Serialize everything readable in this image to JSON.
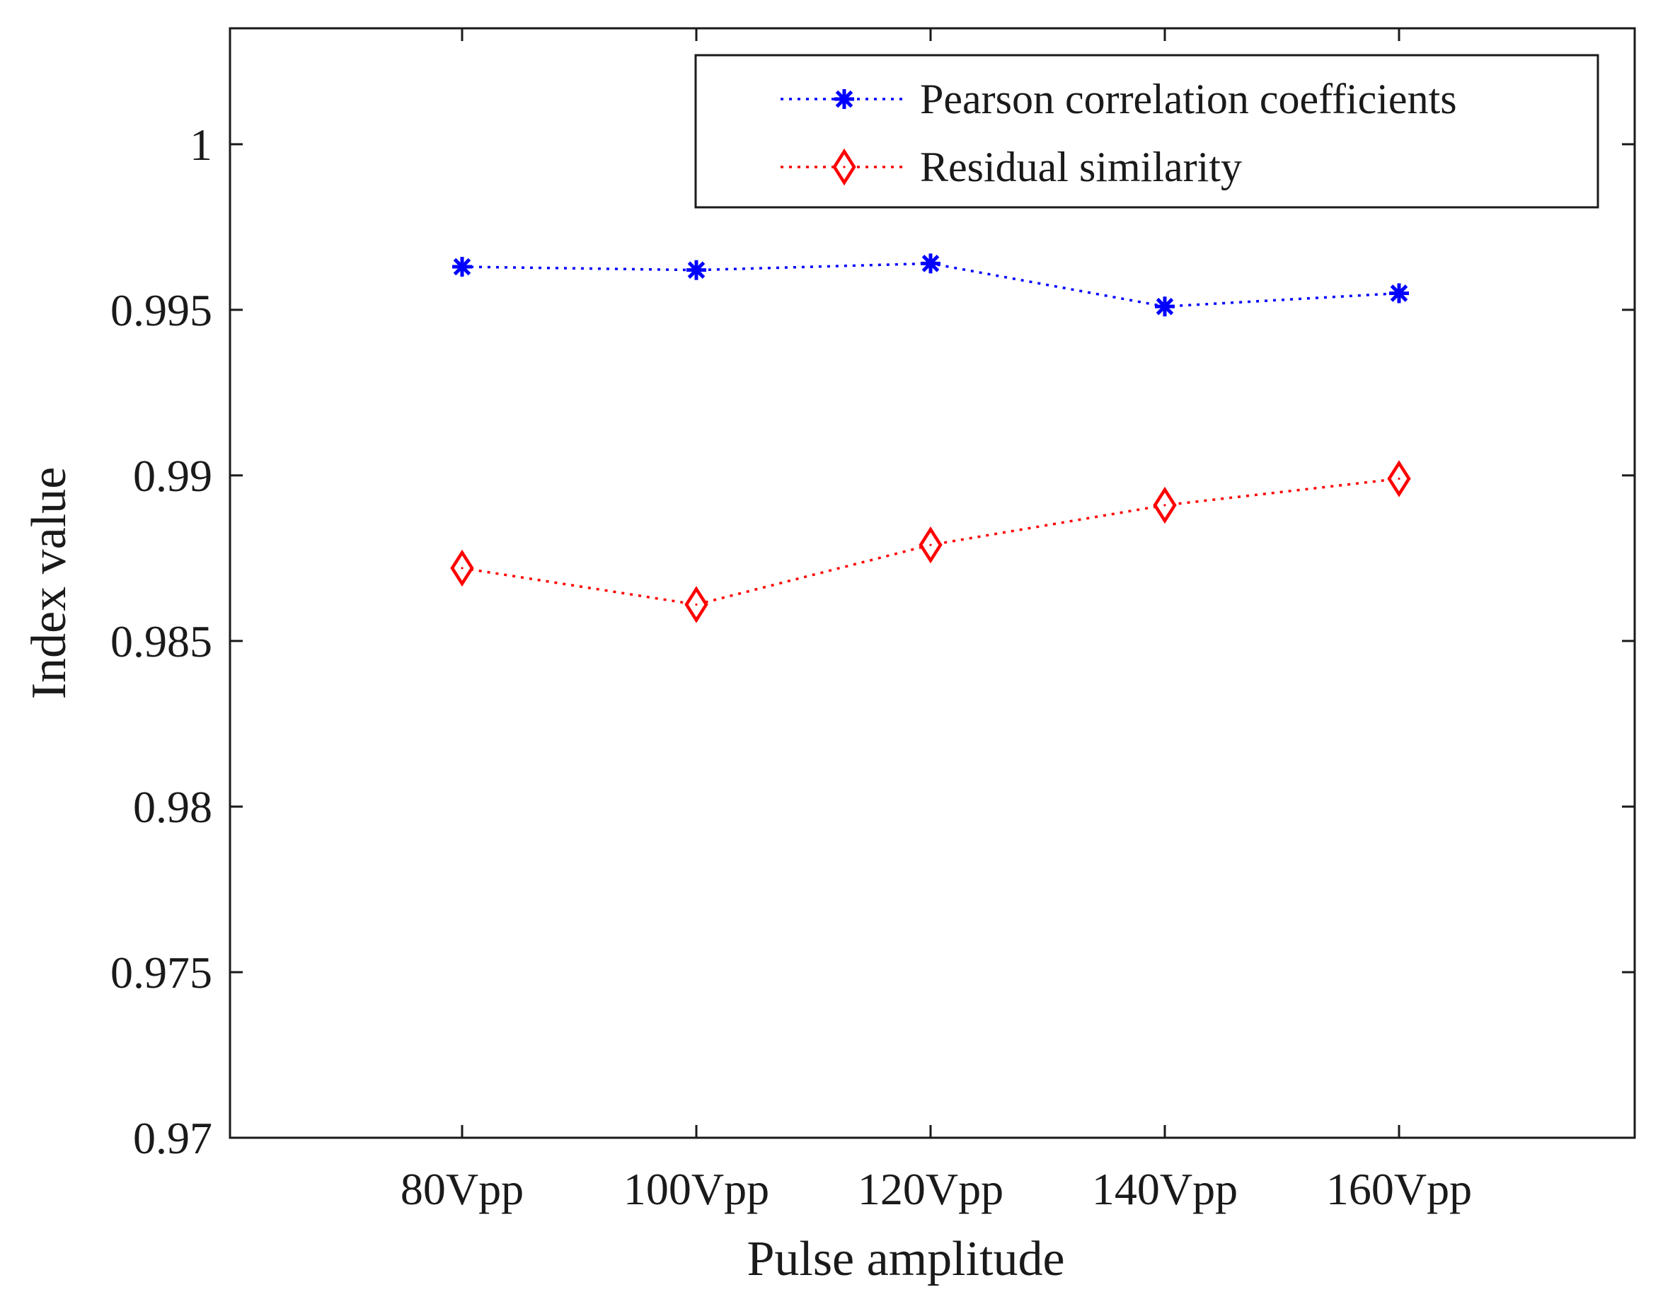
{
  "chart_data": {
    "type": "line",
    "title": "",
    "xlabel": "Pulse amplitude",
    "ylabel": "Index value",
    "categories": [
      "80Vpp",
      "100Vpp",
      "120Vpp",
      "140Vpp",
      "160Vpp"
    ],
    "ylim": [
      0.97,
      1.0035
    ],
    "yticks": [
      0.97,
      0.975,
      0.98,
      0.985,
      0.99,
      0.995,
      1
    ],
    "ytick_labels": [
      "0.97",
      "0.975",
      "0.98",
      "0.985",
      "0.99",
      "0.995",
      "1"
    ],
    "legend_position": "top-right",
    "grid": false,
    "series": [
      {
        "name": "Pearson correlation coefficients",
        "color": "#0000ff",
        "marker": "asterisk",
        "line_style": "dotted",
        "values": [
          0.9963,
          0.9962,
          0.9964,
          0.9951,
          0.9955
        ]
      },
      {
        "name": "Residual similarity",
        "color": "#ff0000",
        "marker": "diamond",
        "line_style": "dotted",
        "values": [
          0.9872,
          0.9861,
          0.9879,
          0.9891,
          0.9899
        ]
      }
    ]
  }
}
